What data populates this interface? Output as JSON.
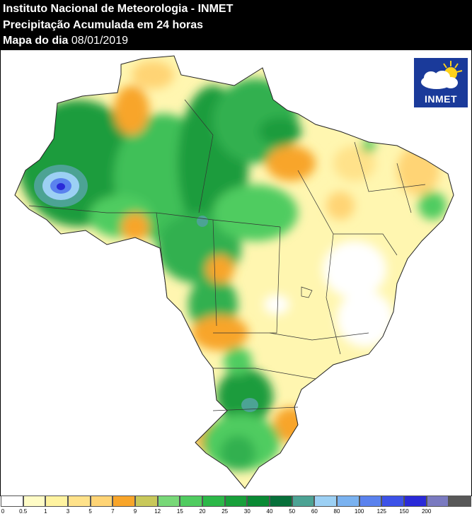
{
  "header": {
    "line1": "Instituto Nacional de Meteorologia - INMET",
    "line2": "Precipitação Acumulada em 24 horas",
    "line3_label": "Mapa do dia",
    "line3_date": "08/01/2019"
  },
  "logo": {
    "text": "INMET",
    "icon": "sun-cloud-icon"
  },
  "legend": {
    "ticks": [
      "0",
      "0.5",
      "1",
      "3",
      "5",
      "7",
      "9",
      "12",
      "15",
      "20",
      "25",
      "30",
      "40",
      "50",
      "60",
      "80",
      "100",
      "125",
      "150",
      "200"
    ],
    "colors": [
      "#ffffff",
      "#fffcc6",
      "#fff3a0",
      "#ffe28a",
      "#ffd475",
      "#f8a52a",
      "#c8c85a",
      "#78d878",
      "#50cc60",
      "#2cb848",
      "#18a03a",
      "#0a8a34",
      "#07703a",
      "#4ca394",
      "#9cd0f4",
      "#7ab2f0",
      "#5a82ee",
      "#3c52e8",
      "#2a2ad8",
      "#7a7ac0",
      "#585858"
    ]
  }
}
